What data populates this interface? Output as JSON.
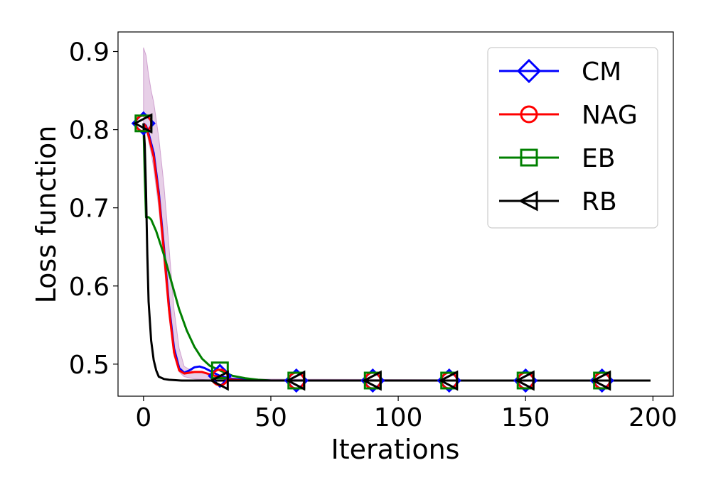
{
  "chart_data": {
    "type": "line",
    "title": "",
    "xlabel": "Iterations",
    "ylabel": "Loss function",
    "xlim": [
      -10,
      208
    ],
    "ylim": [
      0.459,
      0.925
    ],
    "xticks": [
      0,
      50,
      100,
      150,
      200
    ],
    "yticks": [
      0.5,
      0.6,
      0.7,
      0.8,
      0.9
    ],
    "xtick_labels": [
      "0",
      "50",
      "100",
      "150",
      "200"
    ],
    "ytick_labels": [
      "0.5",
      "0.6",
      "0.7",
      "0.8",
      "0.9"
    ],
    "grid": false,
    "legend_position": "top-right",
    "shaded_band": {
      "color": "#b060b0",
      "x": [
        0,
        1,
        2,
        3,
        4,
        6,
        8,
        10,
        12,
        14,
        16,
        20,
        25,
        30,
        40,
        199
      ],
      "upper": [
        0.905,
        0.895,
        0.87,
        0.85,
        0.835,
        0.79,
        0.73,
        0.65,
        0.57,
        0.52,
        0.497,
        0.49,
        0.488,
        0.484,
        0.481,
        0.479
      ],
      "lower": [
        0.808,
        0.8,
        0.785,
        0.77,
        0.75,
        0.7,
        0.63,
        0.56,
        0.51,
        0.49,
        0.484,
        0.481,
        0.48,
        0.479,
        0.479,
        0.479
      ]
    },
    "series": [
      {
        "name": "CM",
        "color": "#0000ff",
        "marker": "diamond",
        "x": [
          0,
          1,
          2,
          4,
          6,
          8,
          10,
          12,
          14,
          16,
          18,
          20,
          22,
          24,
          27,
          30,
          35,
          40,
          50,
          199
        ],
        "values": [
          0.808,
          0.805,
          0.795,
          0.77,
          0.72,
          0.65,
          0.575,
          0.52,
          0.495,
          0.489,
          0.492,
          0.496,
          0.497,
          0.495,
          0.49,
          0.485,
          0.481,
          0.48,
          0.479,
          0.479
        ],
        "marker_x": [
          0,
          30,
          60,
          90,
          120,
          150,
          180
        ],
        "marker_values": [
          0.808,
          0.485,
          0.479,
          0.479,
          0.479,
          0.479,
          0.479
        ]
      },
      {
        "name": "NAG",
        "color": "#ff0000",
        "marker": "circle",
        "x": [
          0,
          1,
          2,
          4,
          6,
          8,
          10,
          12,
          14,
          16,
          18,
          20,
          23,
          26,
          30,
          35,
          40,
          50,
          199
        ],
        "values": [
          0.808,
          0.804,
          0.792,
          0.765,
          0.715,
          0.645,
          0.57,
          0.515,
          0.492,
          0.488,
          0.489,
          0.49,
          0.49,
          0.487,
          0.483,
          0.48,
          0.479,
          0.479,
          0.479
        ],
        "marker_x": [
          0,
          30,
          60,
          90,
          120,
          150,
          180
        ],
        "marker_values": [
          0.808,
          0.483,
          0.479,
          0.479,
          0.479,
          0.479,
          0.479
        ]
      },
      {
        "name": "EB",
        "color": "#008000",
        "marker": "square",
        "x": [
          0,
          0.5,
          1,
          2,
          3,
          5,
          8,
          11,
          14,
          17,
          20,
          23,
          26,
          30,
          35,
          40,
          45,
          50,
          60,
          199
        ],
        "values": [
          0.808,
          0.74,
          0.688,
          0.688,
          0.685,
          0.67,
          0.64,
          0.605,
          0.57,
          0.543,
          0.522,
          0.507,
          0.498,
          0.492,
          0.485,
          0.482,
          0.48,
          0.479,
          0.479,
          0.479
        ],
        "marker_x": [
          0,
          30,
          60,
          90,
          120,
          150,
          180
        ],
        "marker_values": [
          0.808,
          0.492,
          0.479,
          0.479,
          0.479,
          0.479,
          0.479
        ]
      },
      {
        "name": "RB",
        "color": "#000000",
        "marker": "triangle-left",
        "x": [
          0,
          0.5,
          1,
          1.5,
          2,
          3,
          4,
          5,
          6,
          8,
          10,
          15,
          199
        ],
        "values": [
          0.808,
          0.78,
          0.72,
          0.64,
          0.58,
          0.53,
          0.505,
          0.492,
          0.484,
          0.481,
          0.48,
          0.479,
          0.479
        ],
        "marker_x": [
          0,
          30,
          60,
          90,
          120,
          150,
          180
        ],
        "marker_values": [
          0.808,
          0.479,
          0.479,
          0.479,
          0.479,
          0.479,
          0.479
        ]
      }
    ]
  }
}
